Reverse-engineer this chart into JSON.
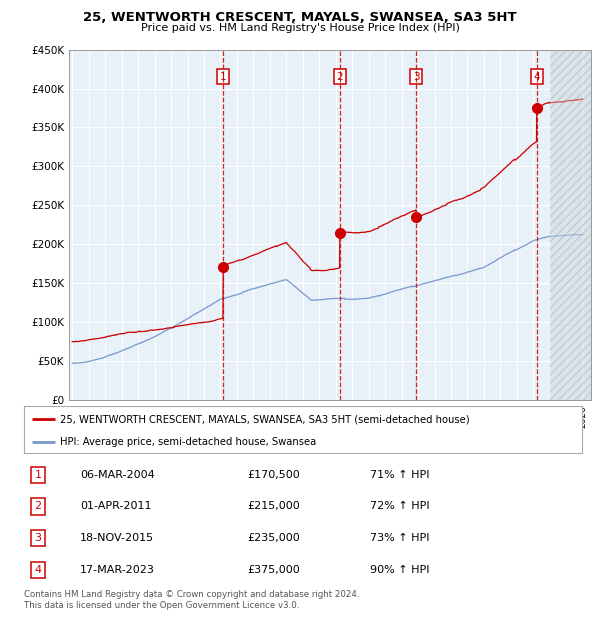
{
  "title": "25, WENTWORTH CRESCENT, MAYALS, SWANSEA, SA3 5HT",
  "subtitle": "Price paid vs. HM Land Registry's House Price Index (HPI)",
  "ylim": [
    0,
    450000
  ],
  "yticks": [
    0,
    50000,
    100000,
    150000,
    200000,
    250000,
    300000,
    350000,
    400000,
    450000
  ],
  "ytick_labels": [
    "£0",
    "£50K",
    "£100K",
    "£150K",
    "£200K",
    "£250K",
    "£300K",
    "£350K",
    "£400K",
    "£450K"
  ],
  "sale_color": "#cc0000",
  "hpi_color": "#7799cc",
  "background_color": "#e8f0f8",
  "future_cutoff": 2024.0,
  "xmin": 1995,
  "xmax": 2026,
  "transaction_markers": [
    {
      "num": 1,
      "date": "06-MAR-2004",
      "price": 170500,
      "price_str": "£170,500",
      "pct": "71%",
      "x_year": 2004.17
    },
    {
      "num": 2,
      "date": "01-APR-2011",
      "price": 215000,
      "price_str": "£215,000",
      "pct": "72%",
      "x_year": 2011.25
    },
    {
      "num": 3,
      "date": "18-NOV-2015",
      "price": 235000,
      "price_str": "£235,000",
      "pct": "73%",
      "x_year": 2015.88
    },
    {
      "num": 4,
      "date": "17-MAR-2023",
      "price": 375000,
      "price_str": "£375,000",
      "pct": "90%",
      "x_year": 2023.21
    }
  ],
  "legend_label_red": "25, WENTWORTH CRESCENT, MAYALS, SWANSEA, SA3 5HT (semi-detached house)",
  "legend_label_blue": "HPI: Average price, semi-detached house, Swansea",
  "footnote": "Contains HM Land Registry data © Crown copyright and database right 2024.\nThis data is licensed under the Open Government Licence v3.0."
}
